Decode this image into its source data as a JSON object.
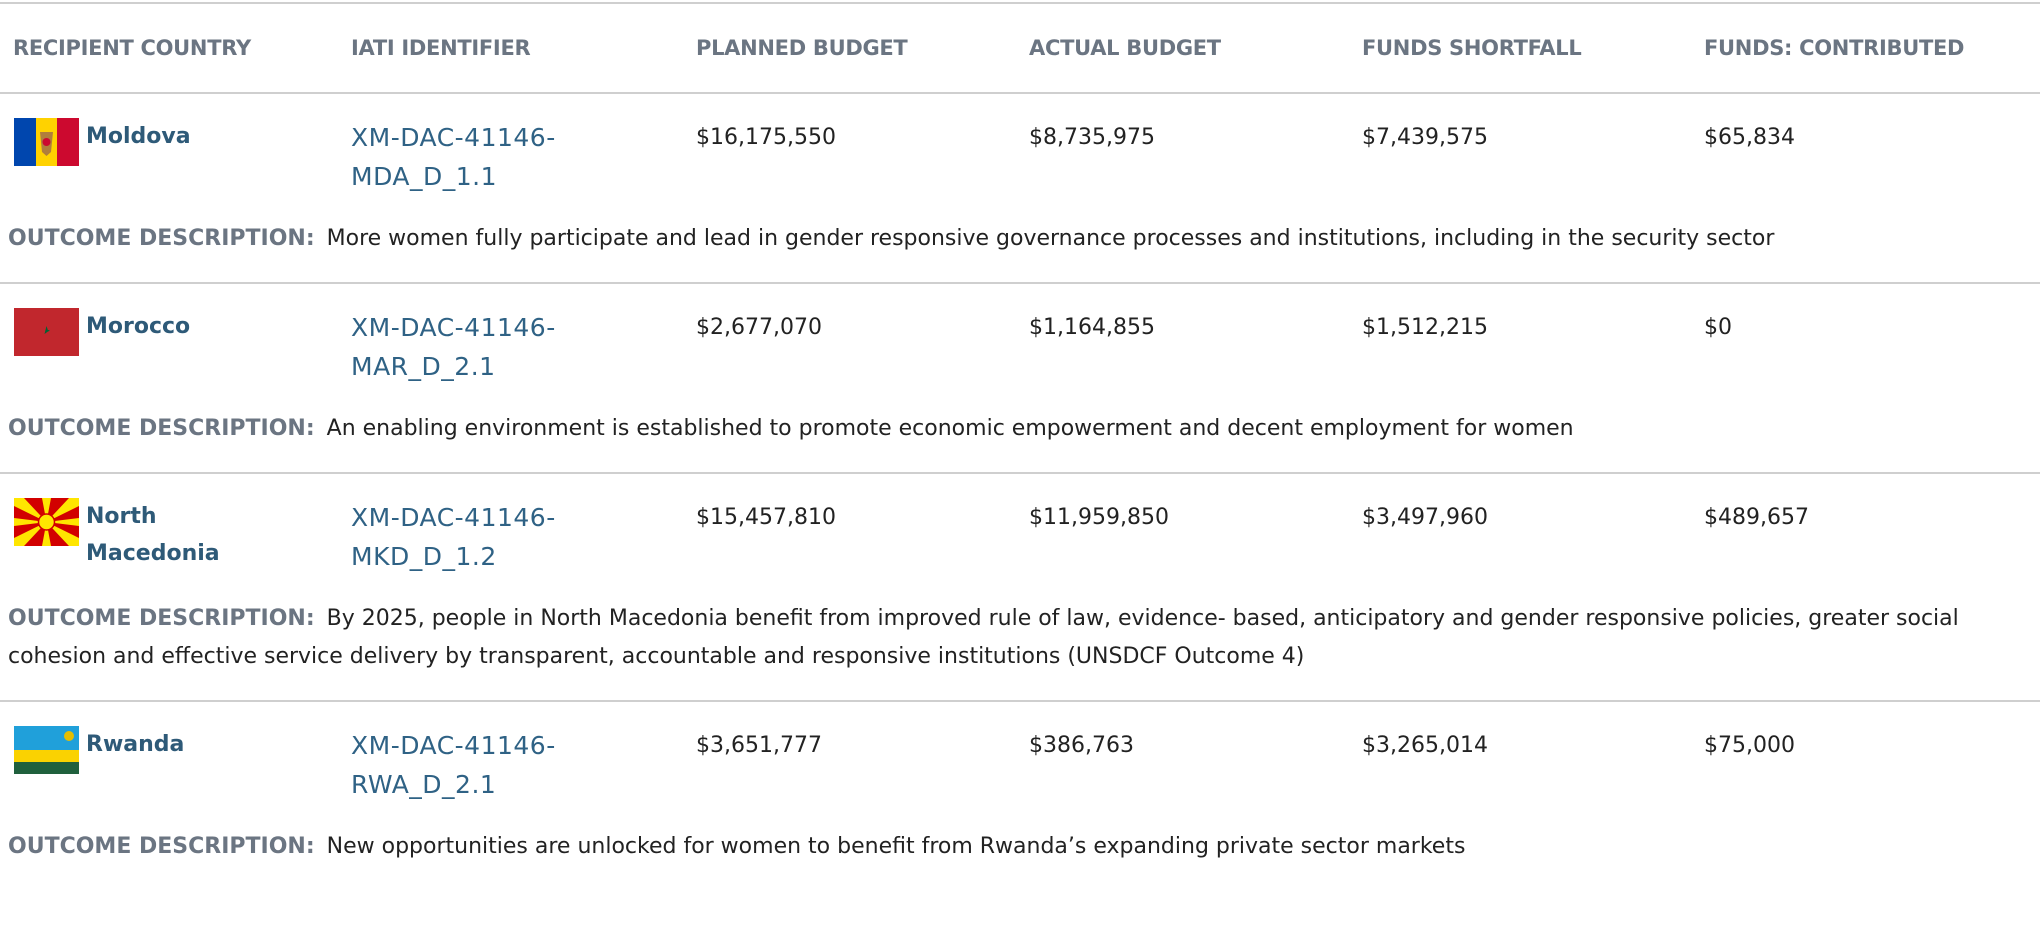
{
  "table": {
    "headers": [
      "RECIPIENT COUNTRY",
      "IATI IDENTIFIER",
      "PLANNED BUDGET",
      "ACTUAL BUDGET",
      "FUNDS SHORTFALL",
      "FUNDS: CONTRIBUTED"
    ],
    "rows": [
      {
        "country": "Moldova",
        "iati_identifier": "XM-DAC-41146-MDA_D_1.1",
        "planned_budget": "$16,175,550",
        "actual_budget": "$8,735,975",
        "funds_shortfall": "$7,439,575",
        "funds_contributed": "$65,834",
        "outcome_label": "OUTCOME DESCRIPTION:",
        "outcome_description": "More women fully participate and lead in gender responsive governance processes and institutions, including in the security sector"
      },
      {
        "country": "Morocco",
        "iati_identifier": "XM-DAC-41146-MAR_D_2.1",
        "planned_budget": "$2,677,070",
        "actual_budget": "$1,164,855",
        "funds_shortfall": "$1,512,215",
        "funds_contributed": "$0",
        "outcome_label": "OUTCOME DESCRIPTION:",
        "outcome_description": "An enabling environment is established to promote economic empowerment and decent employment for women"
      },
      {
        "country": "North Macedonia",
        "iati_identifier": "XM-DAC-41146-MKD_D_1.2",
        "planned_budget": "$15,457,810",
        "actual_budget": "$11,959,850",
        "funds_shortfall": "$3,497,960",
        "funds_contributed": "$489,657",
        "outcome_label": "OUTCOME DESCRIPTION:",
        "outcome_description": "By 2025, people in North Macedonia benefit from improved rule of law, evidence- based, anticipatory and gender responsive policies, greater social cohesion and effective service delivery by transparent, accountable and responsive institutions (UNSDCF Outcome 4)"
      },
      {
        "country": "Rwanda",
        "iati_identifier": "XM-DAC-41146-RWA_D_2.1",
        "planned_budget": "$3,651,777",
        "actual_budget": "$386,763",
        "funds_shortfall": "$3,265,014",
        "funds_contributed": "$75,000",
        "outcome_label": "OUTCOME DESCRIPTION:",
        "outcome_description": "New opportunities are unlocked for women to benefit from Rwanda’s expanding private sector markets"
      }
    ]
  }
}
